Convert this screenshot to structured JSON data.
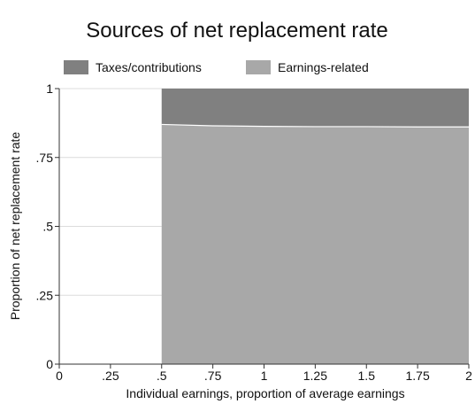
{
  "chart_data": {
    "type": "area",
    "title": "Sources of net replacement rate",
    "xlabel": "Individual earnings, proportion of average earnings",
    "ylabel": "Proportion of net replacement rate",
    "xlim": [
      0,
      2
    ],
    "ylim": [
      0,
      1
    ],
    "x_ticks": [
      "0",
      ".25",
      ".5",
      ".75",
      "1",
      "1.25",
      "1.5",
      "1.75",
      "2"
    ],
    "x_tick_values": [
      0,
      0.25,
      0.5,
      0.75,
      1,
      1.25,
      1.5,
      1.75,
      2
    ],
    "y_ticks": [
      "0",
      ".25",
      ".5",
      ".75",
      "1"
    ],
    "y_tick_values": [
      0,
      0.25,
      0.5,
      0.75,
      1
    ],
    "grid": true,
    "legend_position": "top",
    "x": [
      0.5,
      0.75,
      1,
      1.25,
      1.5,
      1.75,
      2
    ],
    "series": [
      {
        "name": "Taxes/contributions",
        "color": "#808080",
        "values": [
          0.13,
          0.135,
          0.137,
          0.138,
          0.138,
          0.139,
          0.139
        ]
      },
      {
        "name": "Earnings-related",
        "color": "#a8a8a8",
        "values": [
          0.87,
          0.865,
          0.863,
          0.862,
          0.862,
          0.861,
          0.861
        ]
      }
    ]
  }
}
